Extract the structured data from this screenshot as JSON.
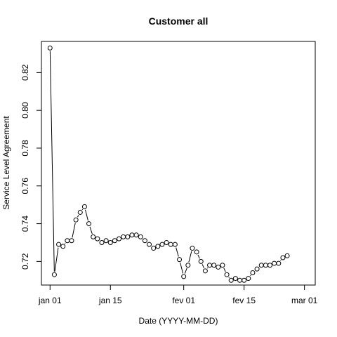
{
  "chart_data": {
    "type": "line",
    "title": "Customer all",
    "xlabel": "Date (YYYY-MM-DD)",
    "ylabel": "Service Level Agreement",
    "xlim": [
      "2023-12-30",
      "2023-03-03"
    ],
    "ylim": [
      0.7075,
      0.8365
    ],
    "x_ticks": [
      {
        "label": "jan 01",
        "date": "01-01"
      },
      {
        "label": "jan 15",
        "date": "01-15"
      },
      {
        "label": "fev 01",
        "date": "02-01"
      },
      {
        "label": "fev 15",
        "date": "02-15"
      },
      {
        "label": "mar 01",
        "date": "03-01"
      }
    ],
    "y_ticks": [
      0.72,
      0.74,
      0.76,
      0.78,
      0.8,
      0.82
    ],
    "grid": false,
    "series": [
      {
        "x": [
          "01-01",
          "01-02",
          "01-03",
          "01-04",
          "01-05",
          "01-06",
          "01-07",
          "01-08",
          "01-09",
          "01-10",
          "01-11",
          "01-12",
          "01-13",
          "01-14",
          "01-15",
          "01-16",
          "01-17",
          "01-18",
          "01-19",
          "01-20",
          "01-21",
          "01-22",
          "01-23",
          "01-24",
          "01-25",
          "01-26",
          "01-27",
          "01-28",
          "01-29",
          "01-30",
          "01-31",
          "02-01",
          "02-02",
          "02-03",
          "02-04",
          "02-05",
          "02-06",
          "02-07",
          "02-08",
          "02-09",
          "02-10",
          "02-11",
          "02-12",
          "02-13",
          "02-14",
          "02-15",
          "02-16",
          "02-17",
          "02-18",
          "02-19",
          "02-20",
          "02-21",
          "02-22",
          "02-23",
          "02-24",
          "02-25"
        ],
        "values": [
          0.833,
          0.713,
          0.729,
          0.728,
          0.731,
          0.731,
          0.742,
          0.746,
          0.749,
          0.74,
          0.733,
          0.732,
          0.73,
          0.731,
          0.73,
          0.731,
          0.732,
          0.733,
          0.733,
          0.734,
          0.734,
          0.733,
          0.731,
          0.729,
          0.727,
          0.728,
          0.729,
          0.73,
          0.729,
          0.729,
          0.721,
          0.712,
          0.718,
          0.727,
          0.725,
          0.72,
          0.715,
          0.718,
          0.718,
          0.717,
          0.718,
          0.713,
          0.71,
          0.711,
          0.71,
          0.71,
          0.711,
          0.714,
          0.716,
          0.718,
          0.718,
          0.718,
          0.719,
          0.719,
          0.722,
          0.723
        ]
      }
    ]
  }
}
